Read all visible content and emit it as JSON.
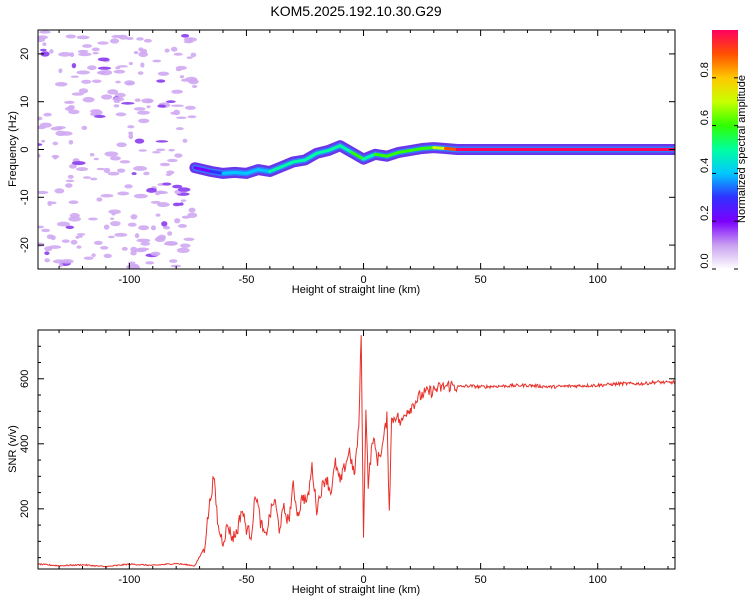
{
  "title": "KOM5.2025.192.10.30.G29",
  "chart_data": [
    {
      "type": "heatmap",
      "title": "KOM5.2025.192.10.30.G29",
      "xlabel": "Height of straight line (km)",
      "ylabel": "Frequency (Hz)",
      "xlim": [
        -139,
        133
      ],
      "ylim": [
        -25,
        25
      ],
      "x_ticks": [
        -100,
        -50,
        0,
        50,
        100
      ],
      "y_ticks": [
        -20,
        -10,
        0,
        10,
        20
      ],
      "colorbar": {
        "label": "Normalized spectral amplitude",
        "range": [
          0,
          1
        ],
        "ticks": [
          "0.0",
          "0.2",
          "0.4",
          "0.6",
          "0.8"
        ],
        "colors": [
          "#ffffff",
          "#c9a0f0",
          "#7b00ff",
          "#3030ff",
          "#00c8ff",
          "#00ffa0",
          "#30ff00",
          "#c8ff00",
          "#ffc800",
          "#ff5000",
          "#ff0060"
        ]
      },
      "noise_region_x": [
        -139,
        -72
      ],
      "signal_ridge": {
        "x": [
          -72,
          -65,
          -60,
          -55,
          -50,
          -45,
          -40,
          -35,
          -30,
          -25,
          -20,
          -15,
          -10,
          -5,
          0,
          5,
          10,
          15,
          20,
          25,
          30,
          35,
          40,
          60,
          80,
          100,
          120,
          133
        ],
        "y": [
          -3.8,
          -4.6,
          -5.0,
          -4.8,
          -5.0,
          -4.2,
          -4.6,
          -3.6,
          -2.6,
          -2.2,
          -0.8,
          -0.2,
          0.8,
          -0.6,
          -2.0,
          -1.0,
          -1.4,
          -0.6,
          -0.2,
          0.2,
          0.4,
          0.2,
          0.0,
          0.0,
          0.0,
          0.0,
          0.0,
          0.0
        ],
        "amplitude": [
          0.2,
          0.3,
          0.35,
          0.4,
          0.4,
          0.42,
          0.45,
          0.45,
          0.45,
          0.45,
          0.5,
          0.5,
          0.5,
          0.55,
          0.5,
          0.55,
          0.55,
          0.55,
          0.6,
          0.6,
          0.7,
          0.85,
          0.95,
          1.0,
          1.0,
          1.0,
          1.0,
          1.0
        ]
      }
    },
    {
      "type": "line",
      "xlabel": "Height of straight line (km)",
      "ylabel": "SNR (v/v)",
      "xlim": [
        -139,
        133
      ],
      "ylim": [
        15,
        750
      ],
      "x_ticks": [
        -100,
        -50,
        0,
        50,
        100
      ],
      "y_ticks": [
        200,
        400,
        600
      ],
      "color": "#e8302a",
      "series": [
        {
          "x": [
            -139,
            -130,
            -120,
            -110,
            -100,
            -90,
            -80,
            -72,
            -68,
            -66,
            -64,
            -62,
            -60,
            -58,
            -56,
            -54,
            -52,
            -50,
            -48,
            -46,
            -44,
            -42,
            -40,
            -38,
            -36,
            -34,
            -32,
            -30,
            -28,
            -26,
            -24,
            -22,
            -20,
            -18,
            -16,
            -14,
            -12,
            -10,
            -8,
            -6,
            -4,
            -2,
            -1,
            0,
            1,
            2,
            4,
            6,
            8,
            10,
            11,
            12,
            14,
            16,
            18,
            20,
            22,
            24,
            26,
            28,
            30,
            32,
            34,
            36,
            38,
            40,
            45,
            50,
            60,
            70,
            80,
            90,
            100,
            110,
            120,
            125,
            130,
            133
          ],
          "y": [
            30,
            25,
            28,
            22,
            30,
            26,
            32,
            25,
            80,
            200,
            300,
            140,
            100,
            150,
            110,
            130,
            200,
            140,
            120,
            250,
            160,
            110,
            180,
            230,
            140,
            200,
            160,
            270,
            180,
            240,
            220,
            330,
            200,
            260,
            300,
            250,
            340,
            280,
            330,
            380,
            300,
            450,
            740,
            100,
            520,
            280,
            420,
            350,
            390,
            480,
            200,
            470,
            490,
            460,
            500,
            510,
            530,
            545,
            555,
            560,
            565,
            570,
            575,
            578,
            580,
            575,
            578,
            575,
            578,
            580,
            575,
            578,
            580,
            585,
            585,
            590,
            588,
            590
          ]
        }
      ]
    }
  ]
}
